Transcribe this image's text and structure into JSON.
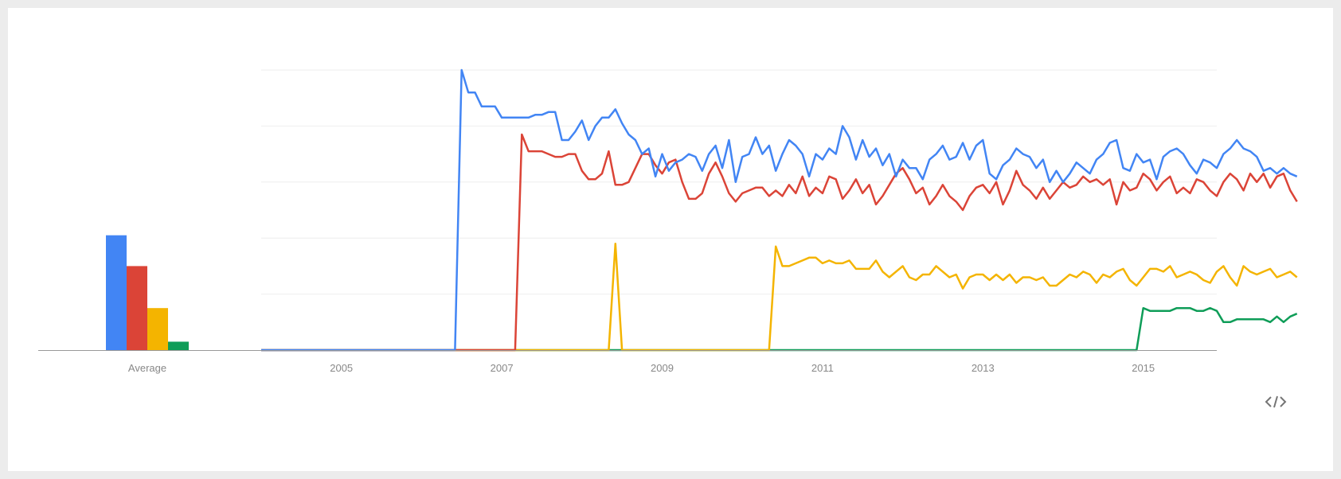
{
  "chart_data": {
    "type": "line",
    "xlabel": "",
    "ylabel": "",
    "ylim": [
      0,
      100
    ],
    "xlim": [
      "2004-01",
      "2015-12"
    ],
    "grid": true,
    "legend": "none",
    "x_ticks": [
      "2005",
      "2007",
      "2009",
      "2011",
      "2013",
      "2015"
    ],
    "average": {
      "label": "Average",
      "values": [
        41,
        30,
        15,
        3
      ]
    },
    "series": [
      {
        "color": "#4285f4",
        "start": "2004-01",
        "values": [
          0,
          0,
          0,
          0,
          0,
          0,
          0,
          0,
          0,
          0,
          0,
          0,
          0,
          0,
          0,
          0,
          0,
          0,
          0,
          0,
          0,
          0,
          0,
          0,
          0,
          0,
          0,
          0,
          0,
          0,
          100,
          92,
          92,
          87,
          87,
          87,
          83,
          83,
          83,
          83,
          83,
          84,
          84,
          85,
          85,
          75,
          75,
          78,
          82,
          75,
          80,
          83,
          83,
          86,
          81,
          77,
          75,
          70,
          72,
          62,
          70,
          64,
          67,
          68,
          70,
          69,
          64,
          70,
          73,
          65,
          75,
          60,
          69,
          70,
          76,
          70,
          73,
          64,
          70,
          75,
          73,
          70,
          62,
          70,
          68,
          72,
          70,
          80,
          76,
          68,
          75,
          69,
          72,
          66,
          70,
          62,
          68,
          65,
          65,
          61,
          68,
          70,
          73,
          68,
          69,
          74,
          68,
          73,
          75,
          63,
          61,
          66,
          68,
          72,
          70,
          69,
          65,
          68,
          60,
          64,
          60,
          63,
          67,
          65,
          63,
          68,
          70,
          74,
          75,
          65,
          64,
          70,
          67,
          68,
          61,
          69,
          71,
          72,
          70,
          66,
          63,
          68,
          67,
          65,
          70,
          72,
          75,
          72,
          71,
          69,
          64,
          65,
          63,
          65,
          63,
          62
        ]
      },
      {
        "color": "#db4437",
        "start": "2004-01",
        "values": [
          0,
          0,
          0,
          0,
          0,
          0,
          0,
          0,
          0,
          0,
          0,
          0,
          0,
          0,
          0,
          0,
          0,
          0,
          0,
          0,
          0,
          0,
          0,
          0,
          0,
          0,
          0,
          0,
          0,
          0,
          0,
          0,
          0,
          0,
          0,
          0,
          0,
          0,
          0,
          77,
          71,
          71,
          71,
          70,
          69,
          69,
          70,
          70,
          64,
          61,
          61,
          63,
          71,
          59,
          59,
          60,
          65,
          70,
          70,
          66,
          63,
          67,
          68,
          60,
          54,
          54,
          56,
          63,
          67,
          62,
          56,
          53,
          56,
          57,
          58,
          58,
          55,
          57,
          55,
          59,
          56,
          62,
          55,
          58,
          56,
          62,
          61,
          54,
          57,
          61,
          56,
          59,
          52,
          55,
          59,
          63,
          65,
          61,
          56,
          58,
          52,
          55,
          59,
          55,
          53,
          50,
          55,
          58,
          59,
          56,
          60,
          52,
          57,
          64,
          59,
          57,
          54,
          58,
          54,
          57,
          60,
          58,
          59,
          62,
          60,
          61,
          59,
          61,
          52,
          60,
          57,
          58,
          63,
          61,
          57,
          60,
          62,
          56,
          58,
          56,
          61,
          60,
          57,
          55,
          60,
          63,
          61,
          57,
          63,
          60,
          63,
          58,
          62,
          63,
          57,
          53
        ]
      },
      {
        "color": "#f4b400",
        "start": "2004-01",
        "values": [
          0,
          0,
          0,
          0,
          0,
          0,
          0,
          0,
          0,
          0,
          0,
          0,
          0,
          0,
          0,
          0,
          0,
          0,
          0,
          0,
          0,
          0,
          0,
          0,
          0,
          0,
          0,
          0,
          0,
          0,
          0,
          0,
          0,
          0,
          0,
          0,
          0,
          0,
          0,
          0,
          0,
          0,
          0,
          0,
          0,
          0,
          0,
          0,
          0,
          0,
          0,
          0,
          0,
          38,
          0,
          0,
          0,
          0,
          0,
          0,
          0,
          0,
          0,
          0,
          0,
          0,
          0,
          0,
          0,
          0,
          0,
          0,
          0,
          0,
          0,
          0,
          0,
          37,
          30,
          30,
          31,
          32,
          33,
          33,
          31,
          32,
          31,
          31,
          32,
          29,
          29,
          29,
          32,
          28,
          26,
          28,
          30,
          26,
          25,
          27,
          27,
          30,
          28,
          26,
          27,
          22,
          26,
          27,
          27,
          25,
          27,
          25,
          27,
          24,
          26,
          26,
          25,
          26,
          23,
          23,
          25,
          27,
          26,
          28,
          27,
          24,
          27,
          26,
          28,
          29,
          25,
          23,
          26,
          29,
          29,
          28,
          30,
          26,
          27,
          28,
          27,
          25,
          24,
          28,
          30,
          26,
          23,
          30,
          28,
          27,
          28,
          29,
          26,
          27,
          28,
          26
        ]
      },
      {
        "color": "#0f9d58",
        "start": "2004-01",
        "values": [
          0,
          0,
          0,
          0,
          0,
          0,
          0,
          0,
          0,
          0,
          0,
          0,
          0,
          0,
          0,
          0,
          0,
          0,
          0,
          0,
          0,
          0,
          0,
          0,
          0,
          0,
          0,
          0,
          0,
          0,
          0,
          0,
          0,
          0,
          0,
          0,
          0,
          0,
          0,
          0,
          0,
          0,
          0,
          0,
          0,
          0,
          0,
          0,
          0,
          0,
          0,
          0,
          0,
          0,
          0,
          0,
          0,
          0,
          0,
          0,
          0,
          0,
          0,
          0,
          0,
          0,
          0,
          0,
          0,
          0,
          0,
          0,
          0,
          0,
          0,
          0,
          0,
          0,
          0,
          0,
          0,
          0,
          0,
          0,
          0,
          0,
          0,
          0,
          0,
          0,
          0,
          0,
          0,
          0,
          0,
          0,
          0,
          0,
          0,
          0,
          0,
          0,
          0,
          0,
          0,
          0,
          0,
          0,
          0,
          0,
          0,
          0,
          0,
          0,
          0,
          0,
          0,
          0,
          0,
          0,
          0,
          0,
          0,
          0,
          0,
          0,
          0,
          0,
          0,
          0,
          0,
          0,
          15,
          14,
          14,
          14,
          14,
          15,
          15,
          15,
          14,
          14,
          15,
          14,
          10,
          10,
          11,
          11,
          11,
          11,
          11,
          10,
          12,
          10,
          12,
          13
        ]
      }
    ]
  }
}
